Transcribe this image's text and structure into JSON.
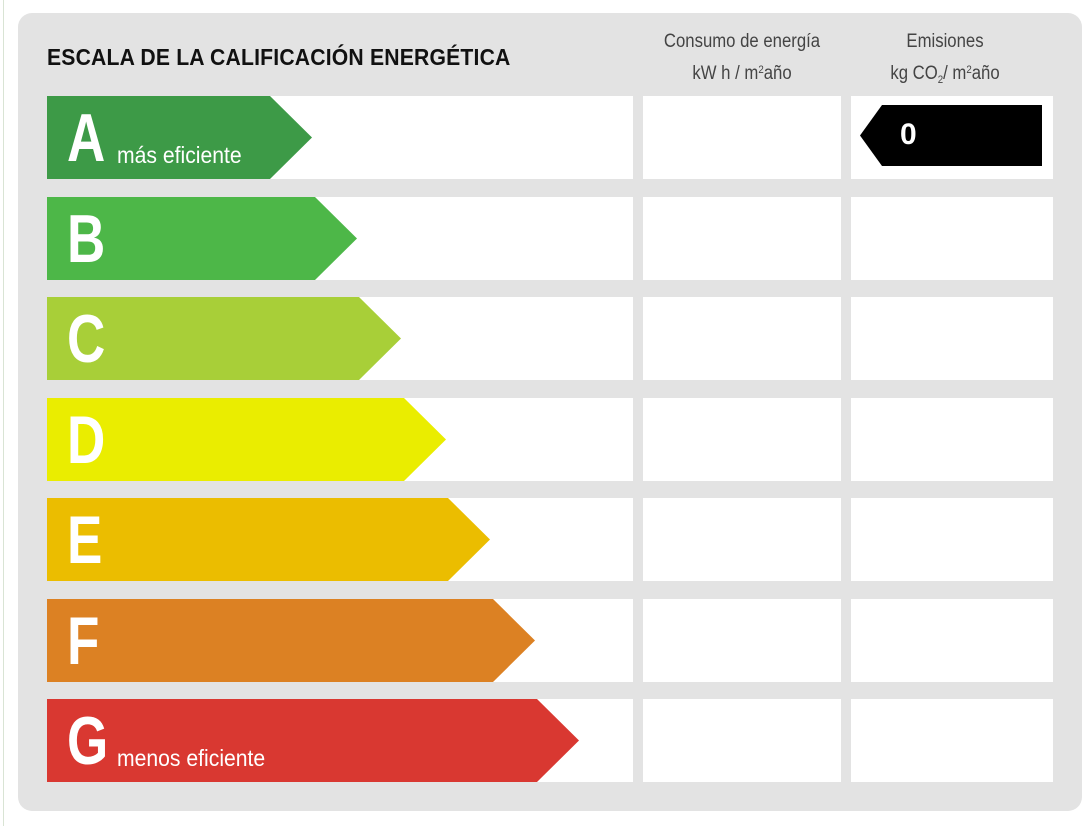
{
  "title": "ESCALA DE LA CALIFICACIÓN ENERGÉTICA",
  "columns": {
    "consumo": {
      "line1": "Consumo de energía",
      "unit_prefix": "kW h / m",
      "unit_sup": "2",
      "unit_suffix": "año"
    },
    "emisiones": {
      "line1": "Emisiones",
      "unit_prefix": "kg CO",
      "unit_sub": "2",
      "unit_mid": "/ m",
      "unit_sup": "2",
      "unit_suffix": "año"
    }
  },
  "ratings": [
    {
      "letter": "A",
      "label": "más eficiente",
      "color": "#3d9a47"
    },
    {
      "letter": "B",
      "label": "",
      "color": "#4db748"
    },
    {
      "letter": "C",
      "label": "",
      "color": "#a8cf38"
    },
    {
      "letter": "D",
      "label": "",
      "color": "#eaed00"
    },
    {
      "letter": "E",
      "label": "",
      "color": "#ebbd00"
    },
    {
      "letter": "F",
      "label": "",
      "color": "#dc8123"
    },
    {
      "letter": "G",
      "label": "menos eficiente",
      "color": "#d93831"
    }
  ],
  "emissions_marker": {
    "rating": "A",
    "value": "0",
    "color": "#000000"
  }
}
